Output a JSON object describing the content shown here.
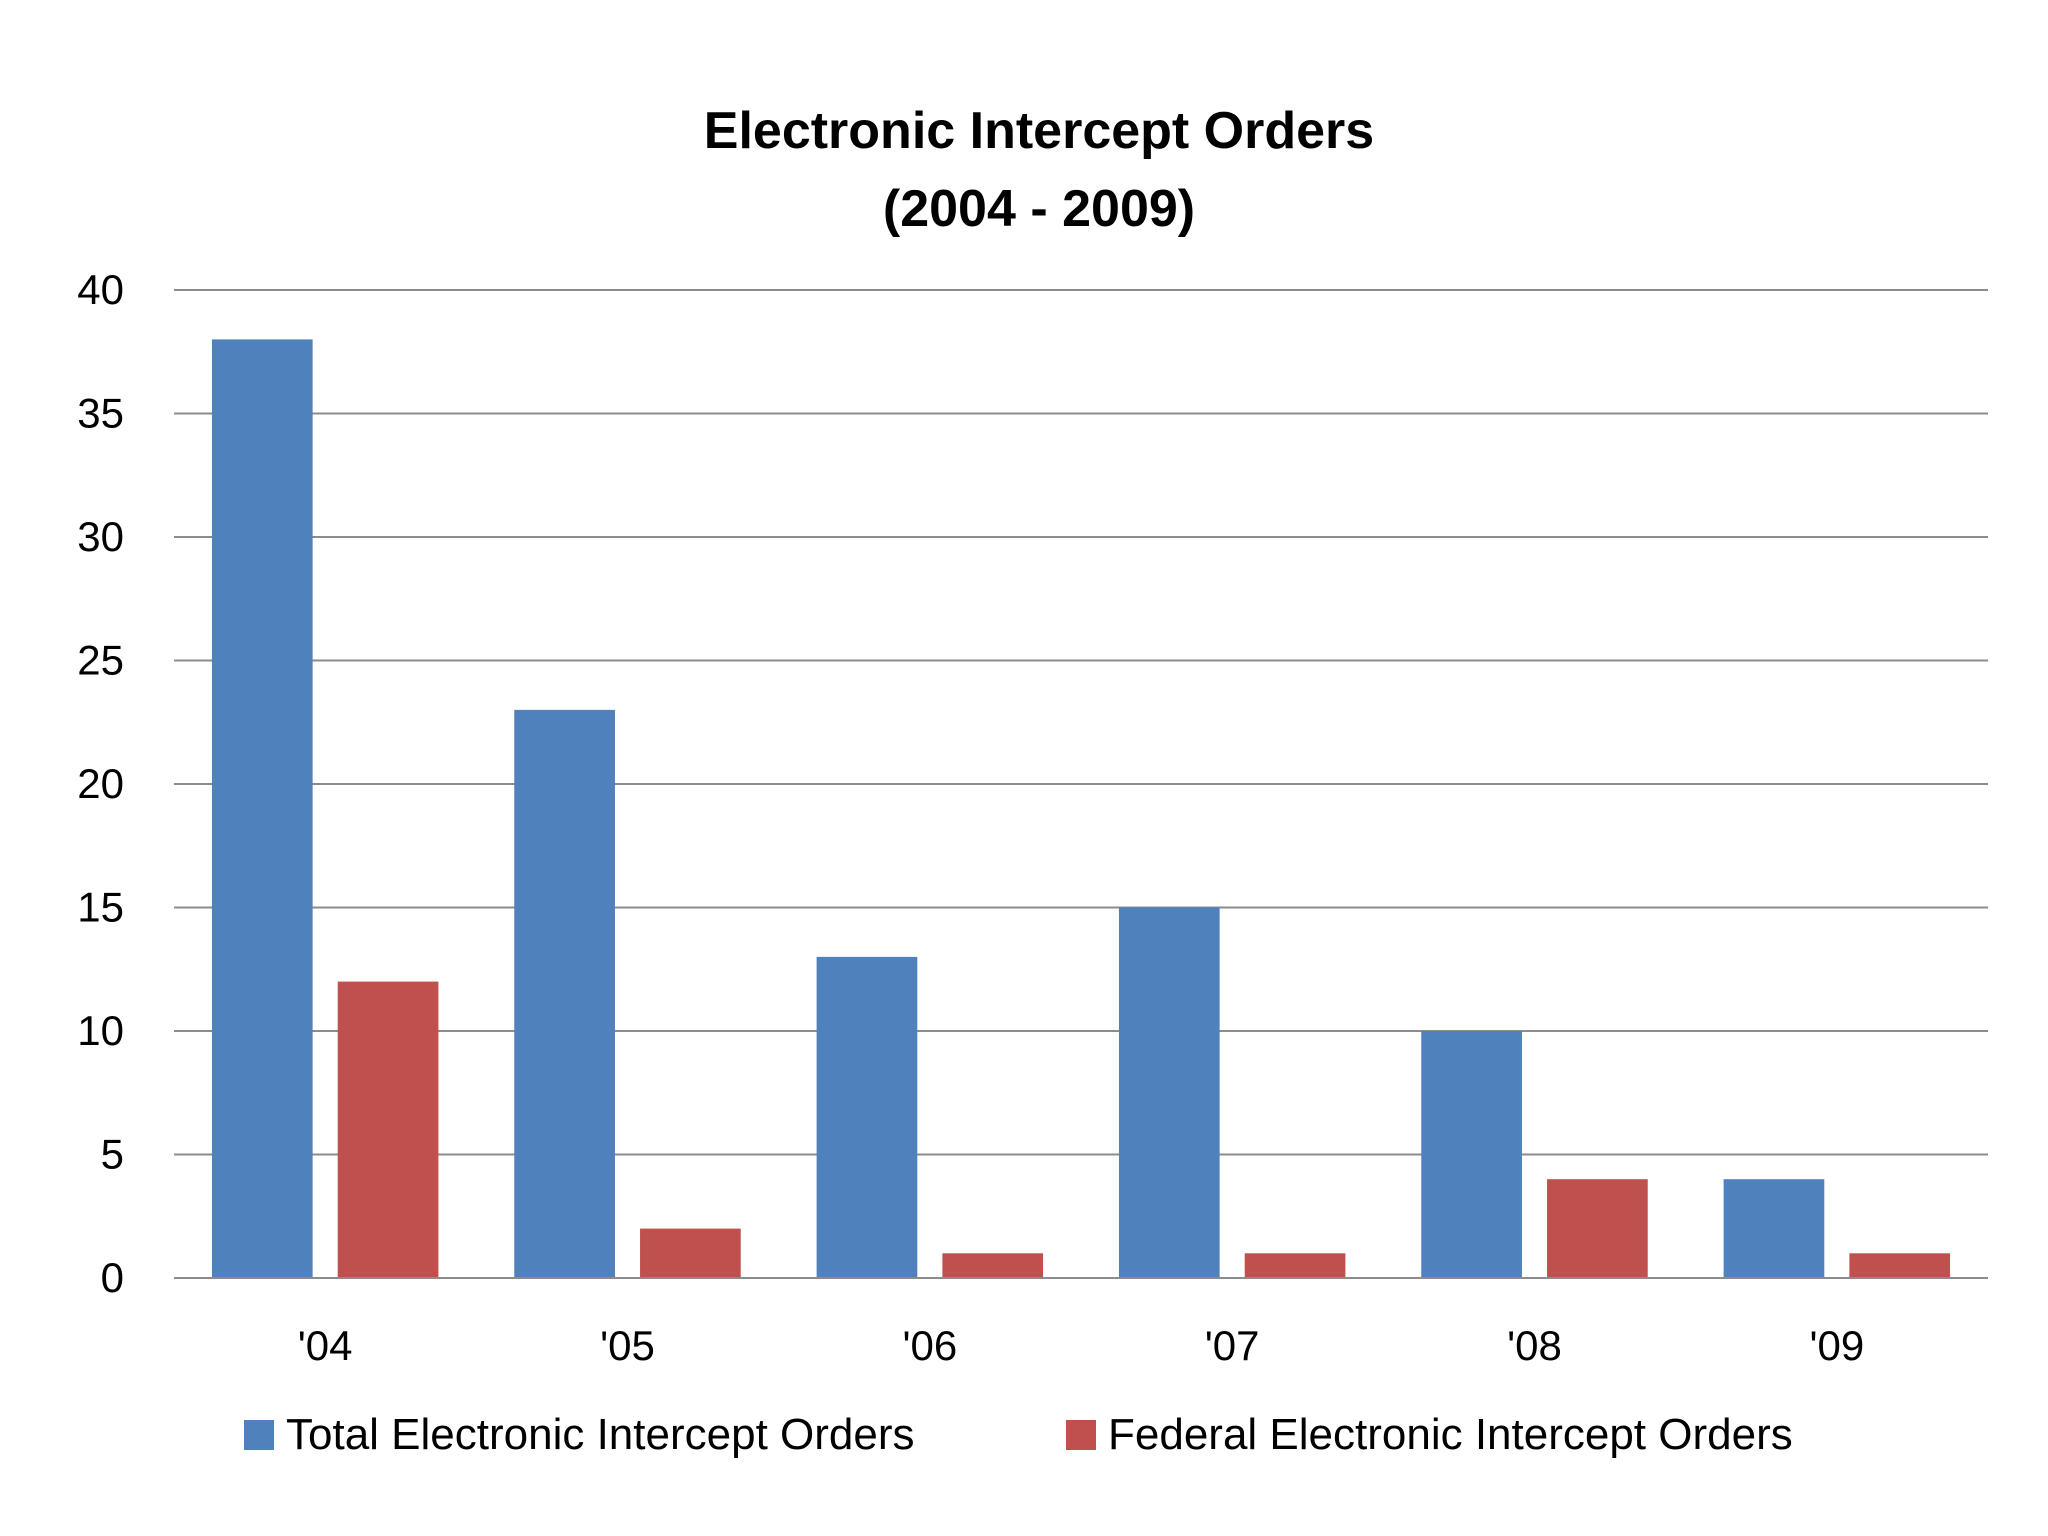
{
  "chart_data": {
    "type": "bar",
    "title": [
      "Electronic Intercept Orders",
      "(2004 - 2009)"
    ],
    "xlabel": "",
    "ylabel": "",
    "categories": [
      "'04",
      "'05",
      "'06",
      "'07",
      "'08",
      "'09"
    ],
    "series": [
      {
        "name": "Total Electronic Intercept Orders",
        "color": "#4F81BD",
        "values": [
          38,
          23,
          13,
          15,
          10,
          4
        ]
      },
      {
        "name": "Federal Electronic Intercept Orders",
        "color": "#C0504D",
        "values": [
          12,
          2,
          1,
          1,
          4,
          1
        ]
      }
    ],
    "ylim": [
      0,
      40
    ],
    "yticks": [
      0,
      5,
      10,
      15,
      20,
      25,
      30,
      35,
      40
    ],
    "grid": true,
    "legend_position": "bottom"
  }
}
